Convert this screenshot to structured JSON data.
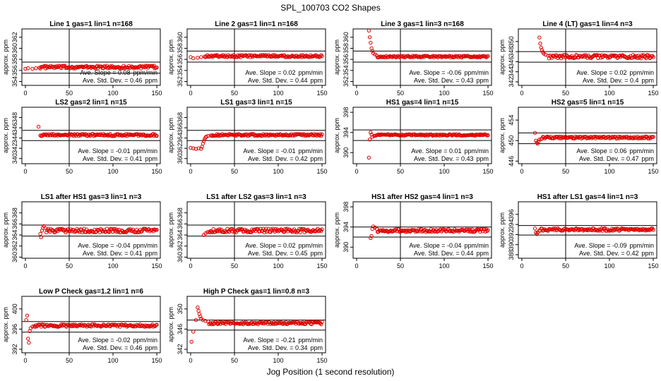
{
  "figure": {
    "title": "SPL_100703  CO2 Shapes",
    "xlabel": "Jog Position (1 second resolution)"
  },
  "chart_data": [
    {
      "type": "scatter",
      "title": "Line 1 gas=1 lin=1 n=168",
      "ylabel": "approx. ppm",
      "xlim": [
        -4,
        154
      ],
      "ylim": [
        353.3,
        363.5
      ],
      "yticks": [
        354,
        356,
        358,
        360,
        362
      ],
      "xticks": [
        0,
        50,
        100,
        150
      ],
      "hlines": [
        357.5,
        355.5
      ],
      "vline": 50,
      "series_points": [
        [
          0,
          356.3
        ],
        [
          3,
          356.4
        ],
        [
          8,
          356.3
        ],
        [
          12,
          356.4
        ],
        [
          16,
          356.5
        ]
      ],
      "plateau": {
        "x": [
          17,
          150
        ],
        "y": 356.6,
        "noise": 0.25
      },
      "slope_label": "Ave. Slope = ",
      "slope_value": "0.08",
      "slope_unit": "ppm/min",
      "sd_label": "Ave. Std. Dev. = ",
      "sd_value": "0.46",
      "sd_unit": "ppm"
    },
    {
      "type": "scatter",
      "title": "Line 2 gas=1 lin=1 n=168",
      "ylabel": "approx. ppm",
      "xlim": [
        -4,
        154
      ],
      "ylim": [
        351.3,
        361.5
      ],
      "yticks": [
        352,
        354,
        356,
        358,
        360
      ],
      "xticks": [
        0,
        50,
        100,
        150
      ],
      "hlines": [
        357.5,
        355.5
      ],
      "vline": 50,
      "series_points": [
        [
          0,
          356.4
        ],
        [
          3,
          356.2
        ],
        [
          8,
          356.3
        ],
        [
          12,
          356.4
        ],
        [
          16,
          356.5
        ]
      ],
      "plateau": {
        "x": [
          17,
          150
        ],
        "y": 356.6,
        "noise": 0.2
      },
      "slope_label": "Ave. Slope = ",
      "slope_value": "0.02",
      "slope_unit": "ppm/min",
      "sd_label": "Ave. Std. Dev. = ",
      "sd_value": "0.44",
      "sd_unit": "ppm"
    },
    {
      "type": "scatter",
      "title": "Line 3 gas=1 lin=3 n=168",
      "ylabel": "approx. ppm",
      "xlim": [
        -4,
        154
      ],
      "ylim": [
        351.3,
        361.5
      ],
      "yticks": [
        352,
        354,
        356,
        358,
        360
      ],
      "xticks": [
        0,
        50,
        100,
        150
      ],
      "hlines": [
        357.5,
        355.5
      ],
      "vline": 50,
      "series_points": [
        [
          13,
          362.0
        ],
        [
          14,
          361.2
        ],
        [
          15,
          360.0
        ],
        [
          16,
          359.0
        ],
        [
          17,
          358.0
        ],
        [
          18,
          357.5
        ],
        [
          19,
          357.1
        ],
        [
          21,
          356.9
        ],
        [
          23,
          356.7
        ]
      ],
      "plateau": {
        "x": [
          24,
          150
        ],
        "y": 356.5,
        "noise": 0.15
      },
      "slope_label": "Ave. Slope = ",
      "slope_value": "-0.06",
      "slope_unit": "ppm/min",
      "sd_label": "Ave. Std. Dev. = ",
      "sd_value": "0.43",
      "sd_unit": "ppm"
    },
    {
      "type": "scatter",
      "title": "Line 4 (LT) gas=1 lin=4 n=3",
      "ylabel": "approx. ppm",
      "xlim": [
        -4,
        154
      ],
      "ylim": [
        341.3,
        352.5
      ],
      "yticks": [
        342,
        344,
        346,
        348,
        350
      ],
      "xticks": [
        0,
        50,
        100,
        150
      ],
      "hlines": [
        348,
        345.9
      ],
      "vline": 50,
      "series_points": [
        [
          20,
          350.8
        ],
        [
          21,
          349.6
        ],
        [
          22,
          348.8
        ],
        [
          23,
          348.3
        ],
        [
          24,
          347.9
        ],
        [
          25,
          347.6
        ],
        [
          27,
          347.4
        ],
        [
          30,
          347.2
        ]
      ],
      "plateau": {
        "x": [
          31,
          150
        ],
        "y": 347.0,
        "noise": 0.35
      },
      "slope_label": "Ave. Slope = ",
      "slope_value": "0.02",
      "slope_unit": "ppm/min",
      "sd_label": "Ave. Std. Dev. = ",
      "sd_value": "0.4",
      "sd_unit": "ppm"
    },
    {
      "type": "scatter",
      "title": "LS2 gas=2 lin=1 n=15",
      "ylabel": "approx. ppm",
      "xlim": [
        -4,
        154
      ],
      "ylim": [
        339.0,
        350.0
      ],
      "yticks": [
        340,
        342,
        344,
        346,
        348
      ],
      "xticks": [
        0,
        50,
        100,
        150
      ],
      "hlines": [
        345.5,
        343.5
      ],
      "vline": 50,
      "series_points": [
        [
          15,
          346.2
        ],
        [
          17,
          344.5
        ],
        [
          18,
          344.4
        ]
      ],
      "plateau": {
        "x": [
          19,
          150
        ],
        "y": 344.6,
        "noise": 0.2
      },
      "slope_label": "Ave. Slope = ",
      "slope_value": "-0.01",
      "slope_unit": "ppm/min",
      "sd_label": "Ave. Std. Dev. = ",
      "sd_value": "0.41",
      "sd_unit": "ppm"
    },
    {
      "type": "scatter",
      "title": "LS1 gas=3 lin=1 n=15",
      "ylabel": "approx. ppm",
      "xlim": [
        -4,
        154
      ],
      "ylim": [
        359.0,
        370.0
      ],
      "yticks": [
        360,
        362,
        364,
        366,
        368
      ],
      "xticks": [
        0,
        50,
        100,
        150
      ],
      "hlines": [
        365.5,
        363.5
      ],
      "vline": 50,
      "series_points": [
        [
          0,
          362.1
        ],
        [
          3,
          362.0
        ],
        [
          6,
          361.9
        ],
        [
          9,
          362.0
        ],
        [
          12,
          361.9
        ],
        [
          13,
          362.3
        ],
        [
          14,
          362.9
        ],
        [
          15,
          363.4
        ],
        [
          16,
          363.8
        ],
        [
          17,
          364.1
        ],
        [
          18,
          364.3
        ],
        [
          20,
          364.4
        ],
        [
          23,
          364.5
        ]
      ],
      "plateau": {
        "x": [
          24,
          150
        ],
        "y": 364.6,
        "noise": 0.2
      },
      "slope_label": "Ave. Slope = ",
      "slope_value": "-0.01",
      "slope_unit": "ppm/min",
      "sd_label": "Ave. Std. Dev. = ",
      "sd_value": "0.42",
      "sd_unit": "ppm"
    },
    {
      "type": "scatter",
      "title": "HS1 gas=4 lin=1 n=15",
      "ylabel": "approx. ppm",
      "xlim": [
        -4,
        154
      ],
      "ylim": [
        387.8,
        399.0
      ],
      "yticks": [
        390,
        394,
        398
      ],
      "xticks": [
        0,
        50,
        100,
        150
      ],
      "hlines": [
        394.5,
        392.4
      ],
      "vline": 50,
      "series_points": [
        [
          14,
          389.0
        ],
        [
          15,
          392.6
        ],
        [
          16,
          394.0
        ],
        [
          17,
          393.6
        ],
        [
          18,
          393.1
        ],
        [
          20,
          393.3
        ]
      ],
      "plateau": {
        "x": [
          21,
          150
        ],
        "y": 393.5,
        "noise": 0.15
      },
      "slope_label": "Ave. Slope = ",
      "slope_value": "0.01",
      "slope_unit": "ppm/min",
      "sd_label": "Ave. Std. Dev. = ",
      "sd_value": "0.43",
      "sd_unit": "ppm"
    },
    {
      "type": "scatter",
      "title": "HS2 gas=5 lin=1 n=15",
      "ylabel": "approx. ppm",
      "xlim": [
        -4,
        154
      ],
      "ylim": [
        445.5,
        456.5
      ],
      "yticks": [
        446,
        450,
        454
      ],
      "xticks": [
        0,
        50,
        100,
        150
      ],
      "hlines": [
        451.5,
        449.4
      ],
      "vline": 50,
      "series_points": [
        [
          15,
          451.5
        ],
        [
          16,
          450.0
        ],
        [
          17,
          449.6
        ],
        [
          18,
          449.4
        ],
        [
          19,
          449.8
        ],
        [
          20,
          450.2
        ],
        [
          22,
          450.3
        ]
      ],
      "plateau": {
        "x": [
          23,
          150
        ],
        "y": 450.6,
        "noise": 0.2
      },
      "slope_label": "Ave. Slope = ",
      "slope_value": "0.06",
      "slope_unit": "ppm/min",
      "sd_label": "Ave. Std. Dev. = ",
      "sd_value": "0.47",
      "sd_unit": "ppm"
    },
    {
      "type": "scatter",
      "title": "LS1 after HS1 gas=3 lin=1 n=3",
      "ylabel": "approx. ppm",
      "xlim": [
        -4,
        154
      ],
      "ylim": [
        359.8,
        370.0
      ],
      "yticks": [
        360,
        362,
        364,
        366,
        368
      ],
      "xticks": [
        0,
        50,
        100,
        150
      ],
      "hlines": [
        365.8,
        363.8
      ],
      "vline": 50,
      "series_points": [
        [
          17,
          364.2
        ],
        [
          18,
          363.6
        ],
        [
          19,
          364.8
        ],
        [
          20,
          365.3
        ],
        [
          21,
          365.6
        ],
        [
          23,
          365.2
        ]
      ],
      "plateau": {
        "x": [
          24,
          150
        ],
        "y": 364.8,
        "noise": 0.35
      },
      "slope_label": "Ave. Slope = ",
      "slope_value": "-0.04",
      "slope_unit": "ppm/min",
      "sd_label": "Ave. Std. Dev. = ",
      "sd_value": "0.41",
      "sd_unit": "ppm"
    },
    {
      "type": "scatter",
      "title": "LS1 after LS2 gas=3 lin=1 n=3",
      "ylabel": "approx. ppm",
      "xlim": [
        -4,
        154
      ],
      "ylim": [
        359.8,
        370.0
      ],
      "yticks": [
        360,
        362,
        364,
        366,
        368
      ],
      "xticks": [
        0,
        50,
        100,
        150
      ],
      "hlines": [
        365.8,
        363.8
      ],
      "vline": 50,
      "series_points": [
        [
          15,
          364.0
        ],
        [
          17,
          364.3
        ],
        [
          19,
          364.5
        ],
        [
          21,
          364.6
        ]
      ],
      "plateau": {
        "x": [
          22,
          150
        ],
        "y": 364.8,
        "noise": 0.35
      },
      "slope_label": "Ave. Slope = ",
      "slope_value": "0.02",
      "slope_unit": "ppm/min",
      "sd_label": "Ave. Std. Dev. = ",
      "sd_value": "0.45",
      "sd_unit": "ppm"
    },
    {
      "type": "scatter",
      "title": "HS1 after HS2 gas=4 lin=1 n=3",
      "ylabel": "approx. ppm",
      "xlim": [
        -4,
        154
      ],
      "ylim": [
        387.8,
        399.0
      ],
      "yticks": [
        390,
        394,
        398
      ],
      "xticks": [
        0,
        50,
        100,
        150
      ],
      "hlines": [
        394.0,
        392.0
      ],
      "vline": 50,
      "series_points": [
        [
          16,
          391.8
        ],
        [
          17,
          392.2
        ],
        [
          18,
          393.6
        ],
        [
          19,
          394.1
        ],
        [
          21,
          393.9
        ],
        [
          23,
          393.6
        ]
      ],
      "plateau": {
        "x": [
          24,
          150
        ],
        "y": 393.3,
        "noise": 0.3
      },
      "slope_label": "Ave. Slope = ",
      "slope_value": "-0.04",
      "slope_unit": "ppm/min",
      "sd_label": "Ave. Std. Dev. = ",
      "sd_value": "0.44",
      "sd_unit": "ppm"
    },
    {
      "type": "scatter",
      "title": "HS1 after LS1 gas=4 lin=1 n=3",
      "ylabel": "approx. ppm",
      "xlim": [
        -4,
        154
      ],
      "ylim": [
        387.3,
        398.5
      ],
      "yticks": [
        388,
        390,
        392,
        394,
        396
      ],
      "xticks": [
        0,
        50,
        100,
        150
      ],
      "hlines": [
        393.8,
        391.9
      ],
      "vline": 50,
      "series_points": [
        [
          15,
          393.2
        ],
        [
          16,
          392.4
        ],
        [
          17,
          392.1
        ],
        [
          18,
          392.4
        ],
        [
          20,
          392.8
        ]
      ],
      "plateau": {
        "x": [
          21,
          150
        ],
        "y": 393.0,
        "noise": 0.25
      },
      "slope_label": "Ave. Slope = ",
      "slope_value": "-0.09",
      "slope_unit": "ppm/min",
      "sd_label": "Ave. Std. Dev. = ",
      "sd_value": "0.42",
      "sd_unit": "ppm"
    },
    {
      "type": "scatter",
      "title": "Low P Check gas=1.2 lin=1 n=6",
      "ylabel": "approx. ppm",
      "xlim": [
        -4,
        154
      ],
      "ylim": [
        391.3,
        402.5
      ],
      "yticks": [
        392,
        396,
        400
      ],
      "xticks": [
        0,
        50,
        100,
        150
      ],
      "hlines": [
        397.5,
        395.4
      ],
      "vline": 50,
      "series_points": [
        [
          1,
          397.8
        ],
        [
          2,
          398.7
        ],
        [
          3,
          394.1
        ],
        [
          4,
          393.3
        ],
        [
          5,
          395.6
        ],
        [
          6,
          396.2
        ],
        [
          8,
          396.5
        ],
        [
          10,
          396.6
        ]
      ],
      "plateau": {
        "x": [
          11,
          150
        ],
        "y": 396.7,
        "noise": 0.25
      },
      "slope_label": "Ave. Slope = ",
      "slope_value": "-0.02",
      "slope_unit": "ppm/min",
      "sd_label": "Ave. Std. Dev. = ",
      "sd_value": "0.46",
      "sd_unit": "ppm"
    },
    {
      "type": "scatter",
      "title": "High P Check gas=1 lin=0.8 n=3",
      "ylabel": "approx. ppm",
      "xlim": [
        -4,
        154
      ],
      "ylim": [
        341.3,
        352.5
      ],
      "yticks": [
        342,
        346,
        350
      ],
      "xticks": [
        0,
        50,
        100,
        150
      ],
      "hlines": [
        347.8,
        345.8
      ],
      "vline": 50,
      "series_points": [
        [
          1,
          343.5
        ],
        [
          3,
          345.5
        ],
        [
          6,
          347.8
        ],
        [
          8,
          350.3
        ],
        [
          9,
          349.6
        ],
        [
          10,
          349.0
        ],
        [
          11,
          348.5
        ],
        [
          12,
          348.1
        ],
        [
          14,
          347.8
        ],
        [
          17,
          347.6
        ],
        [
          20,
          347.5
        ]
      ],
      "plateau": {
        "x": [
          21,
          150
        ],
        "y": 347.2,
        "noise": 0.25
      },
      "slope_label": "Ave. Slope = ",
      "slope_value": "-0.21",
      "slope_unit": "ppm/min",
      "sd_label": "Ave. Std. Dev. = ",
      "sd_value": "0.34",
      "sd_unit": "ppm"
    }
  ],
  "style": {
    "point_color": "#e00000",
    "axis_color": "#000000"
  }
}
